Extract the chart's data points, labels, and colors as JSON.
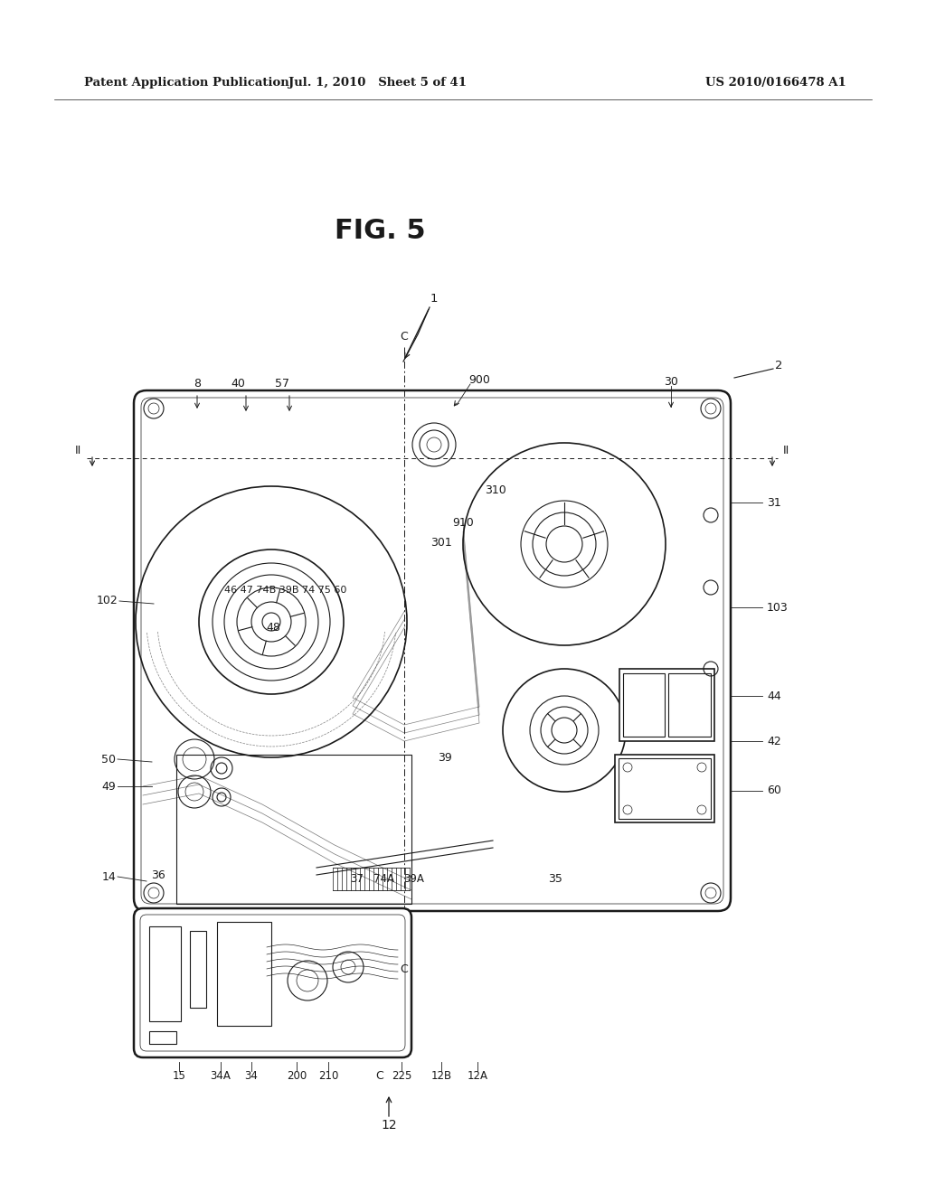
{
  "header_left": "Patent Application Publication",
  "header_mid": "Jul. 1, 2010   Sheet 5 of 41",
  "header_right": "US 2010/0166478 A1",
  "fig_title": "FIG. 5",
  "background_color": "#ffffff",
  "line_color": "#1a1a1a"
}
